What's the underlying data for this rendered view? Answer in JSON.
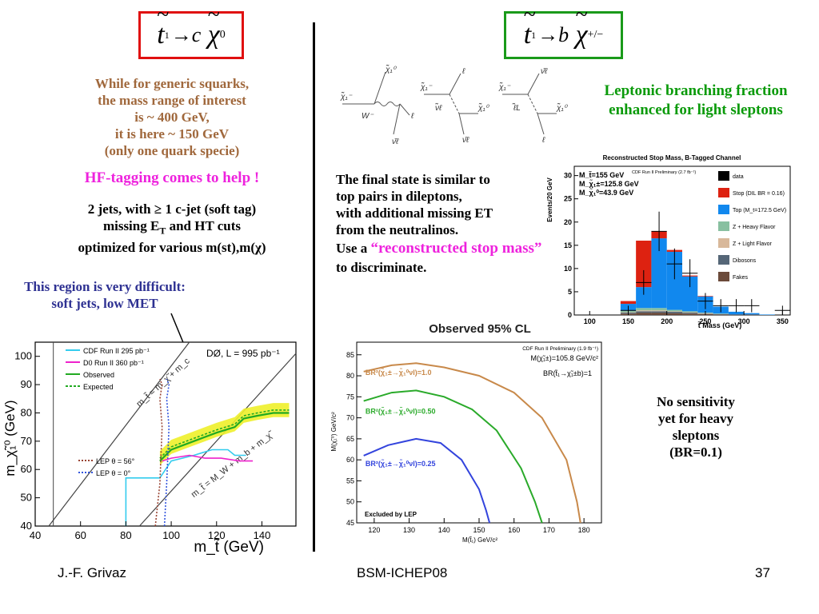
{
  "left_title": {
    "t": "t",
    "sub": "1",
    "arrow": "→",
    "c": "c",
    "chi": "χ",
    "sup": "0"
  },
  "right_title": {
    "t": "t",
    "sub": "1",
    "arrow": "→",
    "b": "b",
    "chi": "χ",
    "sup": "+/−"
  },
  "left_text": {
    "lines": [
      "While for generic squarks,",
      "the mass range of interest",
      "is ~ 400 GeV,",
      "it is here ~ 150 GeV",
      "(only one quark specie)"
    ],
    "hf_tagging": "HF-tagging comes to help !",
    "cuts_line1": "2 jets, with ≥ 1 c-jet (soft tag)",
    "cuts_line2a": "missing E",
    "cuts_line2_sub": "T",
    "cuts_line2b": " and HT cuts",
    "cuts_line3": "optimized for various m(st),m(χ)",
    "difficult_line1": "This region is very difficult:",
    "difficult_line2": "soft jets, low MET"
  },
  "right_text": {
    "leptonic_line1": "Leptonic branching fraction",
    "leptonic_line2": "enhanced for light sleptons",
    "final_state": [
      "The final state is similar to",
      "top pairs in dileptons,",
      "with additional missing ET",
      "from the neutralinos."
    ],
    "use_a": "Use a ",
    "reco_mass": "“reconstructed stop mass”",
    "to_discriminate": " to discriminate.",
    "no_sens": [
      "No sensitivity",
      "yet for heavy",
      "sleptons",
      "(BR=0.1)"
    ]
  },
  "feynman": {
    "diagrams": [
      {
        "in": "χ̃₁⁻",
        "mid": "W⁻",
        "out": [
          "χ̃₁⁰",
          "ℓ",
          "ν̄ℓ"
        ]
      },
      {
        "in": "χ̃₁⁻",
        "mid": "ν̃ℓ",
        "out": [
          "ℓ",
          "χ̃₁⁰",
          "ν̄ℓ"
        ]
      },
      {
        "in": "χ̃₁⁻",
        "mid": "ℓ̃L",
        "out": [
          "ν̄ℓ",
          "χ̃₁⁰",
          "ℓ"
        ]
      }
    ]
  },
  "footer": {
    "author": "J.-F. Grivaz",
    "conference": "BSM-ICHEP08",
    "page": "37"
  },
  "chart_data": [
    {
      "type": "line",
      "title": "DØ, L = 995 pb⁻¹",
      "xlabel": "m_t̃ (GeV)",
      "ylabel": "m_χ̃₁⁰ (GeV)",
      "xlim": [
        40,
        155
      ],
      "ylim": [
        40,
        105
      ],
      "xticks": [
        "40",
        "60",
        "80",
        "100",
        "120",
        "140"
      ],
      "yticks": [
        "40",
        "50",
        "60",
        "70",
        "80",
        "90",
        "100"
      ],
      "annotations": [
        "m_t̃ = m_χ̃ + m_c",
        "m_t̃ = M_W + m_b + m_χ̃"
      ],
      "legend": [
        "CDF Run II 295 pb⁻¹",
        "D0 Run II 360 pb⁻¹",
        "Observed",
        "Expected",
        "LEP θ = 56°",
        "LEP θ = 0°"
      ],
      "series": [
        {
          "name": "CDF Run II 295 pb⁻¹",
          "color": "#33ccee",
          "x": [
            80,
            80,
            95,
            100,
            110,
            118,
            125,
            128,
            133
          ],
          "y": [
            40,
            57,
            57,
            63,
            65,
            67,
            67,
            65,
            65
          ]
        },
        {
          "name": "D0 Run II 360 pb⁻¹",
          "color": "#ee22cc",
          "x": [
            96,
            100,
            108,
            115,
            122,
            130,
            136
          ],
          "y": [
            63,
            64,
            65,
            64,
            64,
            63,
            63
          ]
        },
        {
          "name": "Observed",
          "color": "#22aa22",
          "x": [
            95,
            100,
            110,
            120,
            128,
            132,
            138,
            145,
            152
          ],
          "y": [
            63,
            67,
            70,
            73,
            75,
            78,
            79,
            80,
            80
          ]
        },
        {
          "name": "Expected",
          "color": "#22aa22",
          "x": [
            95,
            100,
            110,
            120,
            128,
            132,
            138,
            145,
            152
          ],
          "y": [
            64,
            68,
            71,
            74,
            76,
            79,
            80,
            81,
            81
          ]
        },
        {
          "name": "LEP θ = 56°",
          "color": "#994433",
          "x": [
            93,
            95,
            96,
            95,
            96,
            95
          ],
          "y": [
            40,
            55,
            75,
            85,
            90,
            92
          ]
        },
        {
          "name": "LEP θ = 0°",
          "color": "#3355dd",
          "x": [
            97,
            98,
            99,
            98,
            99,
            98
          ],
          "y": [
            40,
            55,
            75,
            85,
            90,
            92
          ]
        }
      ]
    },
    {
      "type": "bar",
      "title": "Reconstructed Stop Mass, B-Tagged Channel",
      "subtitle": "CDF Run II Preliminary (2.7 fb⁻¹)",
      "xlabel": "t̃ Mass (GeV)",
      "ylabel": "Events/20 GeV",
      "xlim": [
        80,
        360
      ],
      "ylim": [
        0,
        32
      ],
      "xticks": [
        "100",
        "150",
        "200",
        "250",
        "300",
        "350"
      ],
      "yticks": [
        "0",
        "5",
        "10",
        "15",
        "20",
        "25",
        "30"
      ],
      "info": [
        "M_t̃=155 GeV",
        "M_χ̃₁±=125.8 GeV",
        "M_χ̃₁⁰=43.9 GeV"
      ],
      "categories": [
        150,
        170,
        190,
        210,
        230,
        250,
        270,
        290,
        310,
        330,
        350
      ],
      "series": [
        {
          "name": "Fakes",
          "color": "#6b4a3a",
          "values": [
            0.3,
            0.5,
            0.5,
            0.4,
            0.3,
            0.2,
            0.1,
            0.1,
            0.1,
            0,
            0
          ]
        },
        {
          "name": "Dibosons",
          "color": "#556677",
          "values": [
            0.2,
            0.3,
            0.3,
            0.3,
            0.2,
            0.1,
            0.1,
            0,
            0,
            0,
            0
          ]
        },
        {
          "name": "Z + Light Flavor",
          "color": "#d8b89a",
          "values": [
            0.1,
            0.2,
            0.2,
            0.1,
            0.1,
            0.1,
            0,
            0,
            0,
            0,
            0
          ]
        },
        {
          "name": "Z + Heavy Flavor",
          "color": "#88c0a0",
          "values": [
            0.3,
            0.5,
            0.5,
            0.3,
            0.2,
            0.1,
            0.1,
            0,
            0,
            0,
            0
          ]
        },
        {
          "name": "Top (M_t=172.5 GeV)",
          "color": "#1188ee",
          "values": [
            1.5,
            4.5,
            15,
            12.5,
            7.5,
            3.5,
            1.5,
            0.6,
            0.3,
            0.1,
            0
          ]
        },
        {
          "name": "Stop (DIL BR = 0.16)",
          "color": "#dd2211",
          "values": [
            0.6,
            10,
            1.5,
            0.4,
            0.2,
            0.1,
            0,
            0,
            0,
            0,
            0
          ]
        }
      ],
      "data": {
        "name": "data",
        "x": [
          150,
          170,
          190,
          210,
          230,
          250,
          270,
          290,
          310,
          350
        ],
        "y": [
          1,
          7,
          18,
          11,
          9,
          3,
          2,
          2,
          2,
          1
        ]
      }
    },
    {
      "type": "line",
      "title": "Observed 95% CL",
      "subtitle": "CDF Run II Preliminary (1.9 fb⁻¹)",
      "xlabel": "M(t̃₁) GeV/c²",
      "ylabel": "M(χ̃₁⁰) GeV/c²",
      "xlim": [
        115,
        185
      ],
      "ylim": [
        45,
        88
      ],
      "xticks": [
        "120",
        "130",
        "140",
        "150",
        "160",
        "170",
        "180"
      ],
      "yticks": [
        "45",
        "50",
        "55",
        "60",
        "65",
        "70",
        "75",
        "80",
        "85"
      ],
      "info": [
        "M(χ̃₁±)=105.8 GeV/c²",
        "BR(t̃₁→χ̃₁±b)=1"
      ],
      "annotations": [
        "Excluded by LEP"
      ],
      "series": [
        {
          "name": "BR²(χ̃₁±→χ̃₁⁰νl)=1.0",
          "color": "#c8894a",
          "x": [
            117,
            125,
            132,
            140,
            150,
            160,
            168,
            175,
            178,
            179
          ],
          "y": [
            81,
            82.5,
            83,
            82,
            80,
            76,
            70,
            60,
            50,
            45
          ]
        },
        {
          "name": "BR²(χ̃₁±→χ̃₁⁰νl)=0.50",
          "color": "#2aaa2a",
          "x": [
            117,
            125,
            132,
            140,
            148,
            155,
            162,
            166,
            168
          ],
          "y": [
            74,
            76,
            76.5,
            75,
            72,
            67,
            58,
            50,
            45
          ]
        },
        {
          "name": "BR²(χ̃₁±→χ̃₁⁰νl)=0.25",
          "color": "#3344dd",
          "x": [
            117,
            124,
            132,
            139,
            145,
            150,
            152,
            153
          ],
          "y": [
            61,
            63.5,
            65,
            64,
            60,
            53,
            48,
            45
          ]
        }
      ]
    }
  ]
}
